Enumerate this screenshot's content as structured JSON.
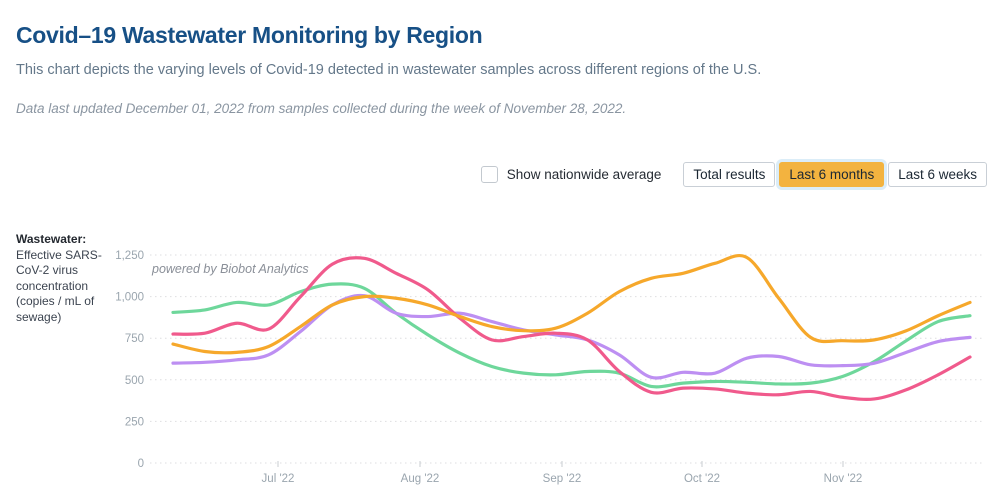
{
  "page": {
    "title": "Covid–19 Wastewater Monitoring by Region",
    "subtitle": "This chart depicts the varying levels of Covid-19 detected in wastewater samples across different regions of the U.S.",
    "updated_note": "Data last updated December 01, 2022 from samples collected during the week of November 28, 2022."
  },
  "controls": {
    "checkbox_label": "Show nationwide average",
    "checkbox_checked": false,
    "buttons": [
      {
        "label": "Total results",
        "selected": false
      },
      {
        "label": "Last 6 months",
        "selected": true
      },
      {
        "label": "Last 6 weeks",
        "selected": false
      }
    ],
    "selected_button_color": "#f3b33f"
  },
  "axis_label": {
    "heading": "Wastewater:",
    "body": " Effective SARS-CoV-2 virus concentration (copies / mL of sewage)"
  },
  "watermark": "powered by Biobot Analytics",
  "chart_data": {
    "type": "line",
    "title": "Covid-19 Wastewater Monitoring by Region",
    "ylabel": "Wastewater: Effective SARS-CoV-2 virus concentration (copies / mL of sewage)",
    "xlabel": "",
    "ylim": [
      0,
      1250
    ],
    "y_ticks": [
      0,
      250,
      500,
      750,
      1000,
      1250
    ],
    "y_tick_labels": [
      "0",
      "250",
      "500",
      "750",
      "1,000",
      "1,250"
    ],
    "x_tick_labels": [
      "Jul '22",
      "Aug '22",
      "Sep '22",
      "Oct '22",
      "Nov '22"
    ],
    "grid": "horizontal-dotted",
    "legend_position": "none",
    "x": [
      "Jun 8",
      "Jun 15",
      "Jun 22",
      "Jun 29",
      "Jul 6",
      "Jul 13",
      "Jul 20",
      "Jul 27",
      "Aug 3",
      "Aug 10",
      "Aug 17",
      "Aug 24",
      "Aug 31",
      "Sep 7",
      "Sep 14",
      "Sep 21",
      "Sep 28",
      "Oct 5",
      "Oct 12",
      "Oct 19",
      "Oct 26",
      "Nov 2",
      "Nov 9",
      "Nov 16",
      "Nov 23",
      "Nov 28"
    ],
    "series": [
      {
        "name": "green-region-line",
        "color": "#6ed79b",
        "values": [
          905,
          920,
          965,
          950,
          1030,
          1075,
          1050,
          900,
          770,
          660,
          580,
          540,
          530,
          550,
          540,
          460,
          480,
          490,
          485,
          475,
          480,
          520,
          610,
          735,
          850,
          885
        ]
      },
      {
        "name": "purple-region-line",
        "color": "#bd8ff2",
        "values": [
          600,
          605,
          620,
          650,
          790,
          950,
          1005,
          900,
          880,
          900,
          850,
          800,
          770,
          740,
          650,
          515,
          545,
          540,
          630,
          640,
          590,
          585,
          600,
          665,
          730,
          755
        ]
      },
      {
        "name": "pink-region-line",
        "color": "#f05a8c",
        "values": [
          775,
          780,
          840,
          805,
          1000,
          1195,
          1230,
          1140,
          1040,
          870,
          740,
          760,
          780,
          740,
          550,
          425,
          450,
          445,
          420,
          410,
          430,
          395,
          385,
          440,
          530,
          637
        ]
      },
      {
        "name": "orange-region-line",
        "color": "#f6a82b",
        "values": [
          715,
          670,
          665,
          700,
          820,
          950,
          1000,
          990,
          950,
          880,
          820,
          795,
          810,
          900,
          1030,
          1110,
          1140,
          1200,
          1235,
          990,
          755,
          735,
          740,
          795,
          885,
          965
        ]
      }
    ]
  }
}
